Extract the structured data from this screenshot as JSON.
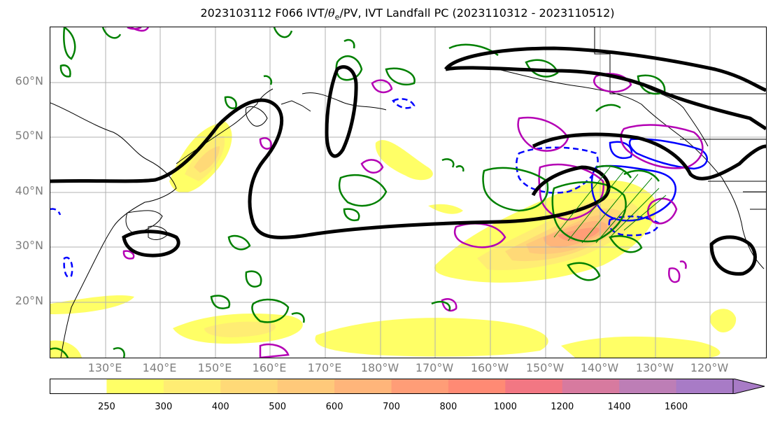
{
  "title": {
    "prefix": "2023103112 F066 IVT/",
    "theta": "θ",
    "sub": "e",
    "suffix": "/PV, IVT Landfall PC (2023110312 - 2023110512)"
  },
  "latitudes": [
    "60°N",
    "50°N",
    "40°N",
    "30°N",
    "20°N"
  ],
  "longitudes": [
    "130°E",
    "140°E",
    "150°E",
    "160°E",
    "170°E",
    "180°W",
    "170°W",
    "160°W",
    "150°W",
    "140°W",
    "130°W",
    "120°W"
  ],
  "colorbar": {
    "ticks": [
      "250",
      "300",
      "400",
      "500",
      "600",
      "700",
      "800",
      "1000",
      "1200",
      "1400",
      "1600"
    ],
    "colors": [
      "#ffffff",
      "#ffff66",
      "#ffed73",
      "#ffd977",
      "#ffc97a",
      "#ffb57a",
      "#ff9d77",
      "#ff8a74",
      "#f27783",
      "#d77a9f",
      "#bd7eb6",
      "#a87bc6"
    ]
  },
  "contour_colors": {
    "landfall_pc": "#000000",
    "theta_e": "#008000",
    "pv_solid": "#b400b4",
    "pv_dashed": "#0000ff"
  }
}
